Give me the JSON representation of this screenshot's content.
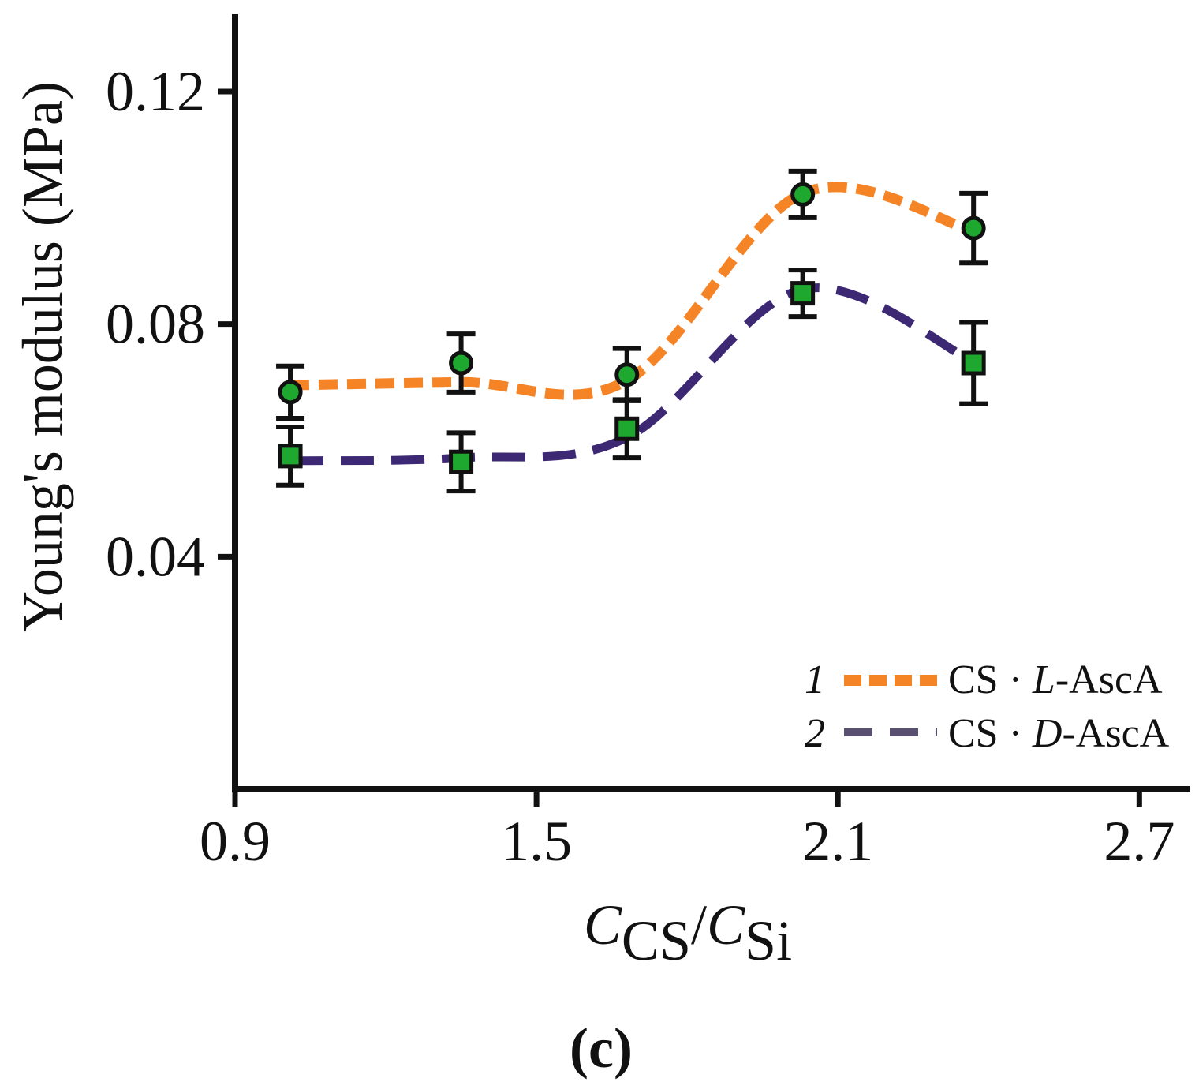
{
  "chart_data": {
    "type": "line",
    "title": "",
    "xlabel": {
      "main": "C",
      "sub1": "CS",
      "slash": "/",
      "main2": "C",
      "sub2": "Si"
    },
    "ylabel": "Young's modulus (MPa)",
    "xlim": [
      0.9,
      2.8
    ],
    "ylim": [
      0.0,
      0.1333
    ],
    "xticks": [
      {
        "value": 0.9,
        "label": "0.9"
      },
      {
        "value": 1.5,
        "label": "1.5"
      },
      {
        "value": 2.1,
        "label": "2.1"
      },
      {
        "value": 2.7,
        "label": "2.7"
      }
    ],
    "yticks": [
      {
        "value": 0.04,
        "label": "0.04"
      },
      {
        "value": 0.08,
        "label": "0.08"
      },
      {
        "value": 0.12,
        "label": "0.12"
      }
    ],
    "series": [
      {
        "name": "CS · L-AscA",
        "legend_number": "1",
        "legend_prefix": "CS · ",
        "legend_italic": "L",
        "legend_suffix": "-AscA",
        "marker": "circle",
        "line_color": "#F58426",
        "marker_color": "#1FA82F",
        "x": [
          1.01,
          1.35,
          1.68,
          2.03,
          2.37
        ],
        "y": [
          0.0683,
          0.0733,
          0.0713,
          0.1023,
          0.0965
        ],
        "err": [
          0.0045,
          0.005,
          0.0045,
          0.004,
          0.006
        ],
        "curve_y": [
          0.0695,
          0.07,
          0.0703,
          0.1025,
          0.096
        ]
      },
      {
        "name": "CS · D-AscA",
        "legend_number": "2",
        "legend_prefix": "CS · ",
        "legend_italic": "D",
        "legend_suffix": "-AscA",
        "marker": "square",
        "line_color": "#3D2873",
        "marker_color": "#1FA82F",
        "x": [
          1.01,
          1.35,
          1.68,
          2.03,
          2.37
        ],
        "y": [
          0.0573,
          0.0563,
          0.062,
          0.0853,
          0.0733
        ],
        "err": [
          0.005,
          0.005,
          0.005,
          0.004,
          0.007
        ],
        "curve_y": [
          0.0565,
          0.057,
          0.0605,
          0.086,
          0.0735
        ]
      }
    ],
    "legend_position": "bottom-right",
    "grid": false,
    "panel_label": "(c)"
  }
}
